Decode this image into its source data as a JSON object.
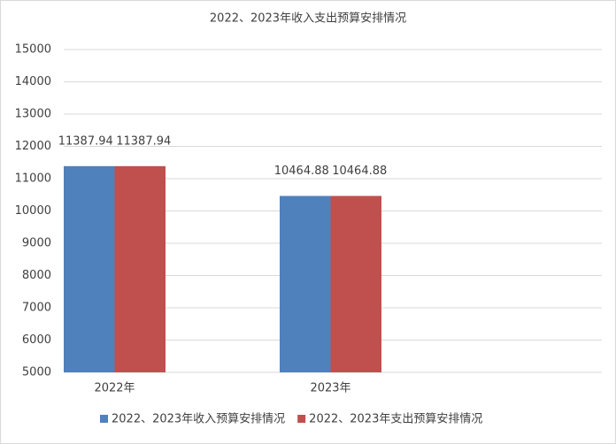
{
  "chart_data": {
    "type": "bar",
    "title": "2022、2023年收入支出预算安排情况",
    "categories": [
      "2022年",
      "2023年"
    ],
    "series": [
      {
        "name": "2022、2023年收入预算安排情况",
        "color": "#4f81bd",
        "values": [
          11387.94,
          10464.88
        ]
      },
      {
        "name": "2022、2023年支出预算安排情况",
        "color": "#c0504d",
        "values": [
          11387.94,
          10464.88
        ]
      }
    ],
    "ylim": [
      5000,
      15000
    ],
    "yticks": [
      5000,
      6000,
      7000,
      8000,
      9000,
      10000,
      11000,
      12000,
      13000,
      14000,
      15000
    ],
    "grid": true,
    "legend": "bottom"
  }
}
